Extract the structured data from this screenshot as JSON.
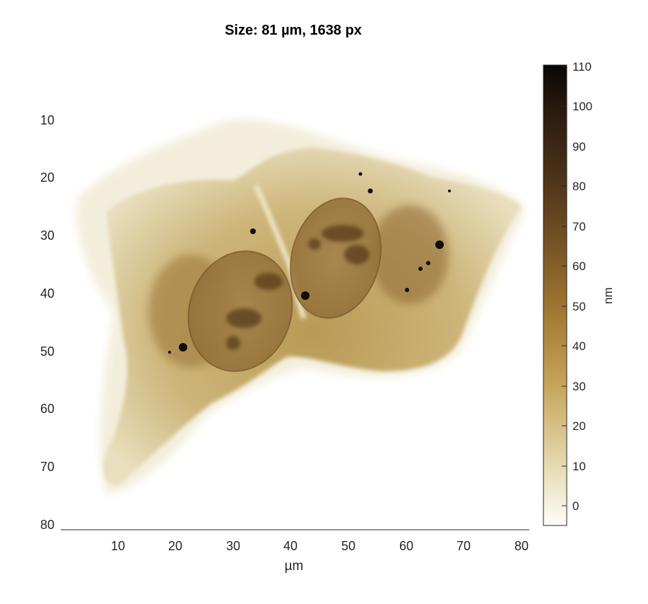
{
  "title": "Size: 81 µm, 1638 px",
  "image": {
    "description_colormap": "afmhot-like brown",
    "x_axis": {
      "label": "µm",
      "ticks": [
        "10",
        "20",
        "30",
        "40",
        "50",
        "60",
        "70",
        "80"
      ]
    },
    "y_axis": {
      "label": "",
      "ticks": [
        "10",
        "20",
        "30",
        "40",
        "50",
        "60",
        "70",
        "80"
      ]
    }
  },
  "colorbar": {
    "unit_label": "nm",
    "ticks": [
      "110",
      "100",
      "90",
      "80",
      "70",
      "60",
      "50",
      "40",
      "30",
      "20",
      "10",
      "0"
    ],
    "colors": {
      "low": "#fdfcf6",
      "mid": "#b8913f",
      "high": "#0d0905"
    }
  }
}
